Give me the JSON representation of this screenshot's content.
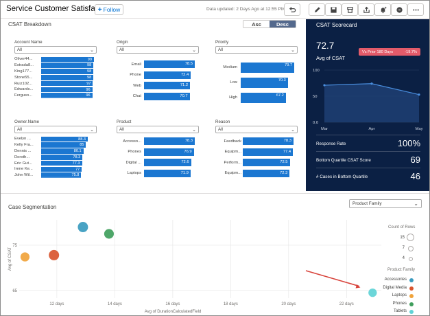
{
  "header": {
    "title": "Service Customer Satisfaction",
    "follow_label": "Follow",
    "updated_text": "Data updated: 2 Days Ago at 12:55 PM"
  },
  "toolbar": {
    "icons": [
      "undo-icon",
      "pencil-icon",
      "save-icon",
      "store-icon",
      "share-icon",
      "subscribe-icon",
      "comment-icon",
      "more-icon"
    ]
  },
  "breakdown": {
    "title": "CSAT Breakdown",
    "sort_asc": "Asc",
    "sort_desc": "Desc",
    "account": {
      "label": "Account Name",
      "selected": "All",
      "rows": [
        {
          "name": "Oliver44...",
          "value": 99
        },
        {
          "name": "Estrada8...",
          "value": 98
        },
        {
          "name": "King177...",
          "value": 98
        },
        {
          "name": "Stone55...",
          "value": 98
        },
        {
          "name": "Ruiz102...",
          "value": 97
        },
        {
          "name": "Edwards...",
          "value": 96
        },
        {
          "name": "Ferguso...",
          "value": 96
        }
      ]
    },
    "origin": {
      "label": "Origin",
      "selected": "All",
      "rows": [
        {
          "name": "Email",
          "value": 78.5
        },
        {
          "name": "Phone",
          "value": 72.4
        },
        {
          "name": "Web",
          "value": 71.2
        },
        {
          "name": "Chat",
          "value": 70.7
        }
      ]
    },
    "priority": {
      "label": "Priority",
      "selected": "All",
      "rows": [
        {
          "name": "Medium",
          "value": 79.7
        },
        {
          "name": "Low",
          "value": 70.3
        },
        {
          "name": "High",
          "value": 67.2
        }
      ]
    },
    "owner": {
      "label": "Owner.Name",
      "selected": "All",
      "rows": [
        {
          "name": "Evelyn ...",
          "value": 88.3
        },
        {
          "name": "Kelly Fra...",
          "value": 85
        },
        {
          "name": "Dennis ...",
          "value": 80.1
        },
        {
          "name": "Doroth...",
          "value": 78.3
        },
        {
          "name": "Eric Gut...",
          "value": 77.3
        },
        {
          "name": "Irene Ke...",
          "value": 77
        },
        {
          "name": "John Wil...",
          "value": 75.8
        }
      ]
    },
    "product": {
      "label": "Product",
      "selected": "All",
      "rows": [
        {
          "name": "Accesso...",
          "value": 78.3
        },
        {
          "name": "Phones",
          "value": 76.9
        },
        {
          "name": "Digital ...",
          "value": 72.6
        },
        {
          "name": "Laptops",
          "value": 71.9
        }
      ]
    },
    "reason": {
      "label": "Reason",
      "selected": "All",
      "rows": [
        {
          "name": "Feedback",
          "value": 78.3
        },
        {
          "name": "Equipm...",
          "value": 77.4
        },
        {
          "name": "Perform...",
          "value": 72.5
        },
        {
          "name": "Equipm...",
          "value": 72.3
        },
        {
          "name": "Installat...",
          "value": 0
        }
      ]
    }
  },
  "scorecard": {
    "title": "CSAT Scorecard",
    "value": "72.7",
    "subtitle": "Avg of CSAT",
    "badge_label": "Vs Prior 180 Days",
    "badge_value": "-19.7%",
    "metrics": [
      {
        "label": "Response Rate",
        "value": "100%"
      },
      {
        "label": "Bottom Quartile CSAT Score",
        "value": "69"
      },
      {
        "label": "# Cases in Bottom Quartile",
        "value": "46"
      }
    ]
  },
  "segmentation": {
    "title": "Case Segmentation",
    "dropdown": "Product Family",
    "count_legend_title": "Count of Rows",
    "count_legend": [
      "15",
      "7",
      "4"
    ],
    "family_legend_title": "Product Family",
    "families": [
      {
        "name": "Accessories",
        "color": "#3a9bbf"
      },
      {
        "name": "Digital Media",
        "color": "#d9552f"
      },
      {
        "name": "Laptops",
        "color": "#f0a33b"
      },
      {
        "name": "Phones",
        "color": "#3f9e5c"
      },
      {
        "name": "Tablets",
        "color": "#5fd3d6"
      }
    ]
  },
  "chart_data": [
    {
      "type": "line",
      "x": [
        "Mar",
        "Apr",
        "May"
      ],
      "values": [
        71,
        74,
        53
      ],
      "ylim": [
        0,
        100
      ],
      "yticks": [
        "100",
        "50",
        "0.0"
      ]
    },
    {
      "type": "scatter",
      "xlabel": "Avg of DurationCalculatedField",
      "ylabel": "Avg of CSAT",
      "xticks": [
        "12 days",
        "14 days",
        "16 days",
        "18 days",
        "20 days",
        "22 days"
      ],
      "yticks": [
        "75",
        "65"
      ],
      "xlim": [
        10.7,
        23.2
      ],
      "ylim": [
        63.3,
        80.6
      ],
      "points": [
        {
          "family": "Accessories",
          "x": 12.9,
          "y": 79.0,
          "count": 10
        },
        {
          "family": "Phones",
          "x": 13.8,
          "y": 77.5,
          "count": 9
        },
        {
          "family": "Laptops",
          "x": 10.9,
          "y": 72.4,
          "count": 8
        },
        {
          "family": "Digital Media",
          "x": 11.9,
          "y": 72.8,
          "count": 10
        },
        {
          "family": "Tablets",
          "x": 22.9,
          "y": 64.5,
          "count": 7
        }
      ]
    }
  ]
}
